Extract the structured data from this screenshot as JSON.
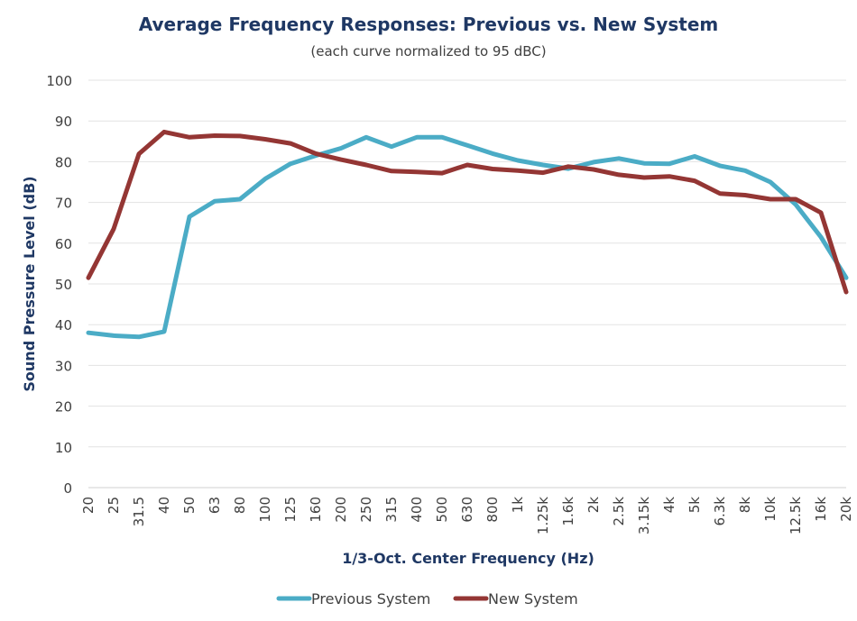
{
  "chart_data": {
    "type": "line",
    "title": "Average Frequency Responses: Previous vs. New System",
    "subtitle": "(each curve normalized to 95 dBC)",
    "xlabel": "1/3-Oct. Center Frequency (Hz)",
    "ylabel": "Sound Pressure Level (dB)",
    "ylim": [
      0,
      100
    ],
    "yticks": [
      "0",
      "10",
      "20",
      "30",
      "40",
      "50",
      "60",
      "70",
      "80",
      "90",
      "100"
    ],
    "grid": true,
    "legend_position": "bottom",
    "categories": [
      "20",
      "25",
      "31.5",
      "40",
      "50",
      "63",
      "80",
      "100",
      "125",
      "160",
      "200",
      "250",
      "315",
      "400",
      "500",
      "630",
      "800",
      "1k",
      "1.25k",
      "1.6k",
      "2k",
      "2.5k",
      "3.15k",
      "4k",
      "5k",
      "6.3k",
      "8k",
      "10k",
      "12.5k",
      "16k",
      "20k"
    ],
    "series": [
      {
        "name": "Previous System",
        "color": "#4bacc6",
        "values": [
          38,
          37.3,
          37,
          38.3,
          66.5,
          70.3,
          70.8,
          75.8,
          79.5,
          81.5,
          83.3,
          86,
          83.7,
          86,
          86,
          84,
          82,
          80.3,
          79.2,
          78.3,
          79.9,
          80.8,
          79.6,
          79.5,
          81.3,
          79,
          77.8,
          75,
          69.5,
          61.5,
          51.5
        ]
      },
      {
        "name": "New System",
        "color": "#943634",
        "values": [
          51.5,
          63.5,
          81.9,
          87.3,
          86,
          86.4,
          86.3,
          85.5,
          84.5,
          82,
          80.5,
          79.2,
          77.7,
          77.5,
          77.2,
          79.2,
          78.2,
          77.8,
          77.3,
          78.8,
          78.1,
          76.8,
          76.1,
          76.4,
          75.3,
          72.2,
          71.8,
          70.8,
          70.8,
          67.5,
          48
        ]
      }
    ]
  }
}
